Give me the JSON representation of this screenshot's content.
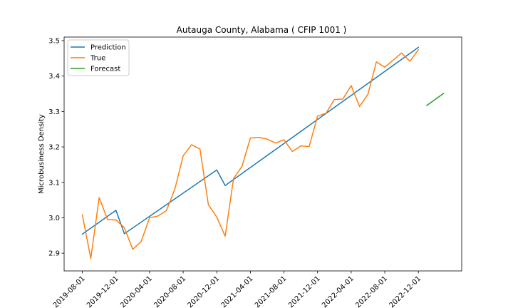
{
  "chart_data": {
    "type": "line",
    "title": "Autauga County, Alabama ( CFIP 1001 )",
    "xlabel": "",
    "ylabel": "Microbusiness Density",
    "ylim": [
      2.85,
      3.51
    ],
    "yticks": [
      2.9,
      3.0,
      3.1,
      3.2,
      3.3,
      3.4,
      3.5
    ],
    "ytick_labels": [
      "2.9",
      "3.0",
      "3.1",
      "3.2",
      "3.3",
      "3.4",
      "3.5"
    ],
    "xticks": [
      "2019-08-01",
      "2019-12-01",
      "2020-04-01",
      "2020-08-01",
      "2020-12-01",
      "2021-04-01",
      "2021-08-01",
      "2021-12-01",
      "2022-04-01",
      "2022-08-01",
      "2022-12-01"
    ],
    "legend_position": "top-left",
    "grid": false,
    "series": [
      {
        "name": "Prediction",
        "color": "#1f77b4",
        "x": [
          "2019-08-01",
          "2019-12-01",
          "2020-01-01",
          "2020-12-01",
          "2021-01-01",
          "2022-12-01"
        ],
        "y": [
          2.954,
          3.021,
          2.955,
          3.135,
          3.091,
          3.481
        ]
      },
      {
        "name": "True",
        "color": "#ff7f0e",
        "x": [
          "2019-08-01",
          "2019-09-01",
          "2019-10-01",
          "2019-11-01",
          "2019-12-01",
          "2020-01-01",
          "2020-02-01",
          "2020-03-01",
          "2020-04-01",
          "2020-05-01",
          "2020-06-01",
          "2020-07-01",
          "2020-08-01",
          "2020-09-01",
          "2020-10-01",
          "2020-11-01",
          "2020-12-01",
          "2021-01-01",
          "2021-02-01",
          "2021-03-01",
          "2021-04-01",
          "2021-05-01",
          "2021-06-01",
          "2021-07-01",
          "2021-08-01",
          "2021-09-01",
          "2021-10-01",
          "2021-11-01",
          "2021-12-01",
          "2022-01-01",
          "2022-02-01",
          "2022-03-01",
          "2022-04-01",
          "2022-05-01",
          "2022-06-01",
          "2022-07-01",
          "2022-08-01",
          "2022-09-01",
          "2022-10-01",
          "2022-11-01",
          "2022-12-01"
        ],
        "y": [
          3.008,
          2.885,
          3.057,
          2.995,
          2.994,
          2.972,
          2.911,
          2.933,
          3.0,
          3.005,
          3.02,
          3.08,
          3.175,
          3.206,
          3.194,
          3.037,
          3.002,
          2.948,
          3.111,
          3.145,
          3.225,
          3.227,
          3.222,
          3.211,
          3.22,
          3.187,
          3.203,
          3.201,
          3.287,
          3.295,
          3.334,
          3.335,
          3.373,
          3.314,
          3.349,
          3.44,
          3.425,
          3.445,
          3.465,
          3.442,
          3.474
        ]
      },
      {
        "name": "Forecast",
        "color": "#2ca02c",
        "x": [
          "2023-01-01",
          "2023-03-01"
        ],
        "y": [
          3.317,
          3.351
        ]
      }
    ]
  }
}
